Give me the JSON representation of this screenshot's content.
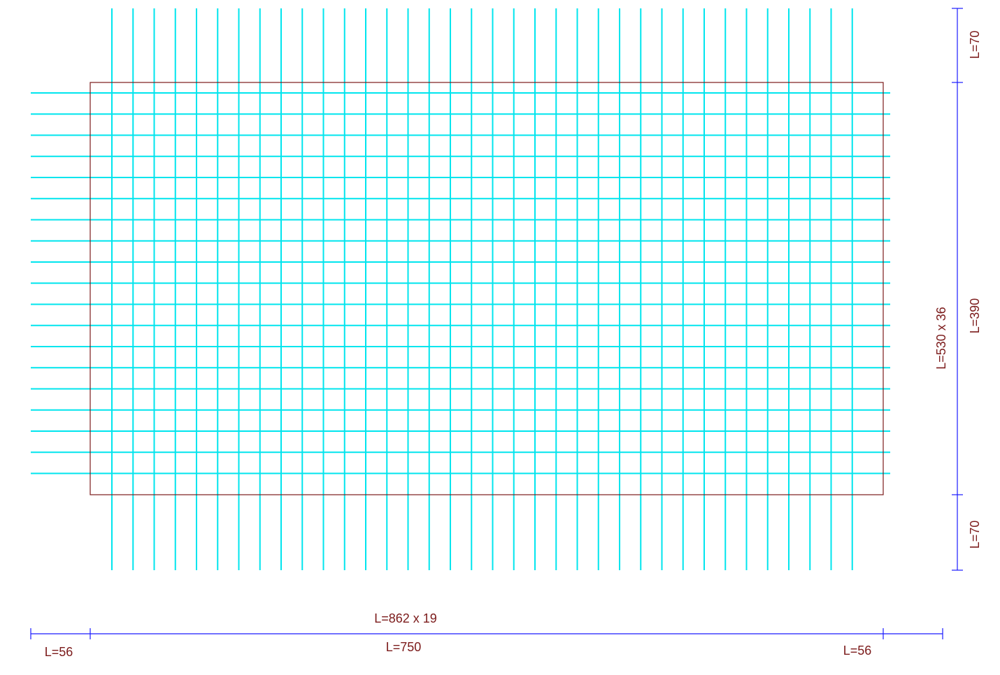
{
  "colors": {
    "background": "#ffffff",
    "rebar": "#00e5ee",
    "slab_outline": "#7b1a1a",
    "dimension_line": "#1a1aff",
    "dimension_text": "#7b1a1a"
  },
  "slab": {
    "width": 750,
    "height": 390
  },
  "rebar_vertical": {
    "count": 36,
    "length": 530,
    "label": "L=530 x 36"
  },
  "rebar_horizontal": {
    "count": 19,
    "length": 862,
    "label": "L=862 x 19"
  },
  "dimensions": {
    "bottom": {
      "left_overhang": "L=56",
      "span": "L=750",
      "right_overhang": "L=56"
    },
    "right": {
      "top_overhang": "L=70",
      "span": "L=390",
      "bottom_overhang": "L=70"
    }
  }
}
